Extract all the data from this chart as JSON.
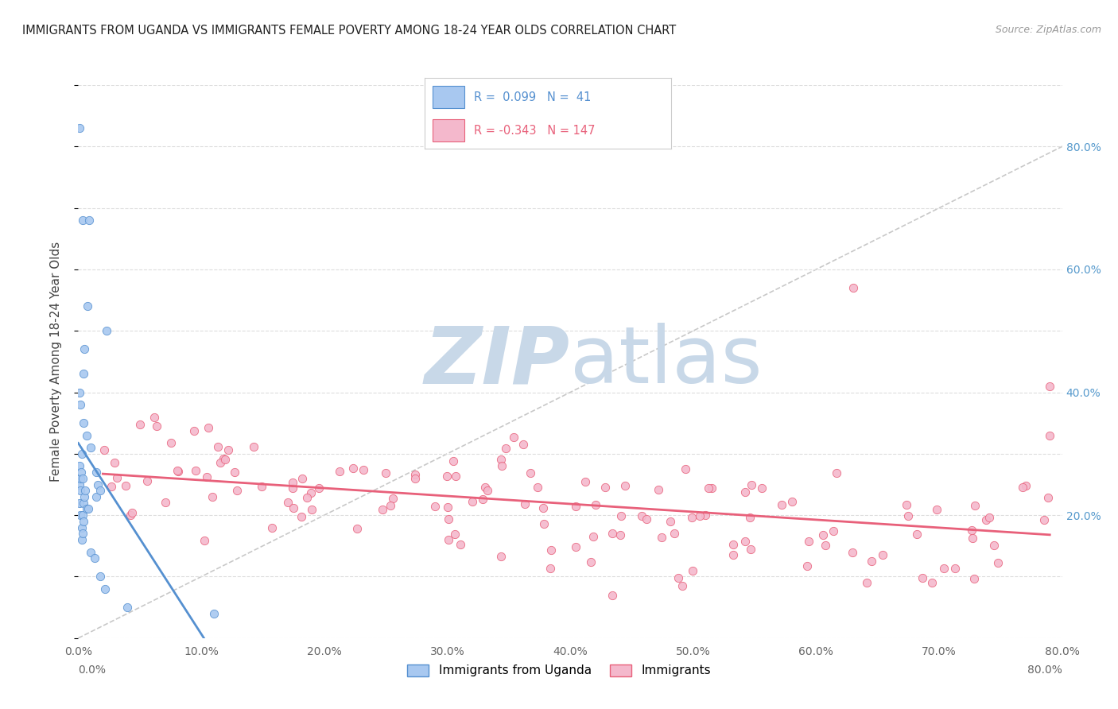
{
  "title": "IMMIGRANTS FROM UGANDA VS IMMIGRANTS FEMALE POVERTY AMONG 18-24 YEAR OLDS CORRELATION CHART",
  "source": "Source: ZipAtlas.com",
  "ylabel": "Female Poverty Among 18-24 Year Olds",
  "legend_labels": [
    "Immigrants from Uganda",
    "Immigrants"
  ],
  "r_uganda": 0.099,
  "n_uganda": 41,
  "r_immigrants": -0.343,
  "n_immigrants": 147,
  "xlim": [
    0.0,
    0.8
  ],
  "ylim": [
    0.0,
    0.9
  ],
  "color_uganda": "#a8c8f0",
  "color_immigrants": "#f4b8cc",
  "scatter_alpha": 0.9,
  "scatter_size": 55,
  "line_color_uganda": "#5590d0",
  "line_color_immigrants": "#e8607a",
  "diagonal_color": "#bbbbbb",
  "watermark_zip": "ZIP",
  "watermark_atlas": "atlas",
  "watermark_color_zip": "#c8d8e8",
  "watermark_color_atlas": "#c8d8e8",
  "background_color": "#ffffff",
  "grid_color": "#dddddd",
  "right_tick_color": "#5599cc",
  "title_fontsize": 10.5,
  "source_fontsize": 9,
  "ylabel_fontsize": 11
}
